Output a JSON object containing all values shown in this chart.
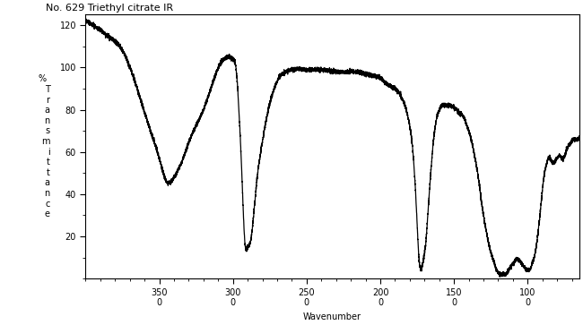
{
  "title": "No. 629 Triethyl citrate IR",
  "xlabel": "Wavenumber",
  "ylabel_chars": [
    "%",
    " ",
    "T",
    "r",
    "a",
    "n",
    "s",
    "m",
    "i",
    "t",
    "t",
    "a",
    "n",
    "c",
    "e"
  ],
  "xlim": [
    4000,
    650
  ],
  "ylim": [
    0,
    125
  ],
  "yticks": [
    20,
    40,
    60,
    80,
    100,
    120
  ],
  "xticks": [
    3500,
    3000,
    2500,
    2000,
    1500,
    1000
  ],
  "xtick_labels": [
    "350\n0",
    "300\n0",
    "250\n0",
    "200\n0",
    "150\n0",
    "100\n0"
  ],
  "background_color": "#ffffff",
  "line_color": "#000000",
  "title_fontsize": 8,
  "axis_fontsize": 7,
  "tick_fontsize": 7,
  "control_points": [
    [
      4000,
      122
    ],
    [
      3950,
      120
    ],
    [
      3850,
      115
    ],
    [
      3750,
      108
    ],
    [
      3650,
      90
    ],
    [
      3560,
      70
    ],
    [
      3500,
      57
    ],
    [
      3450,
      46
    ],
    [
      3400,
      48
    ],
    [
      3350,
      55
    ],
    [
      3280,
      68
    ],
    [
      3200,
      80
    ],
    [
      3150,
      90
    ],
    [
      3100,
      100
    ],
    [
      3060,
      104
    ],
    [
      3030,
      105
    ],
    [
      3000,
      104
    ],
    [
      2980,
      100
    ],
    [
      2960,
      80
    ],
    [
      2940,
      50
    ],
    [
      2920,
      18
    ],
    [
      2900,
      15
    ],
    [
      2880,
      18
    ],
    [
      2860,
      30
    ],
    [
      2840,
      45
    ],
    [
      2800,
      65
    ],
    [
      2760,
      80
    ],
    [
      2720,
      90
    ],
    [
      2680,
      96
    ],
    [
      2640,
      98
    ],
    [
      2600,
      99
    ],
    [
      2500,
      99
    ],
    [
      2400,
      99
    ],
    [
      2300,
      98
    ],
    [
      2200,
      98
    ],
    [
      2100,
      97
    ],
    [
      2050,
      96
    ],
    [
      2000,
      95
    ],
    [
      1950,
      92
    ],
    [
      1900,
      90
    ],
    [
      1850,
      85
    ],
    [
      1800,
      72
    ],
    [
      1760,
      40
    ],
    [
      1740,
      12
    ],
    [
      1730,
      5
    ],
    [
      1720,
      5
    ],
    [
      1710,
      8
    ],
    [
      1700,
      12
    ],
    [
      1690,
      18
    ],
    [
      1680,
      28
    ],
    [
      1660,
      48
    ],
    [
      1640,
      65
    ],
    [
      1620,
      75
    ],
    [
      1600,
      80
    ],
    [
      1580,
      82
    ],
    [
      1560,
      82
    ],
    [
      1540,
      82
    ],
    [
      1520,
      82
    ],
    [
      1500,
      81
    ],
    [
      1480,
      80
    ],
    [
      1460,
      78
    ],
    [
      1450,
      78
    ],
    [
      1440,
      77
    ],
    [
      1430,
      76
    ],
    [
      1420,
      74
    ],
    [
      1400,
      70
    ],
    [
      1380,
      65
    ],
    [
      1360,
      58
    ],
    [
      1340,
      50
    ],
    [
      1320,
      40
    ],
    [
      1300,
      30
    ],
    [
      1280,
      22
    ],
    [
      1260,
      15
    ],
    [
      1240,
      10
    ],
    [
      1220,
      6
    ],
    [
      1210,
      4
    ],
    [
      1200,
      3
    ],
    [
      1190,
      2
    ],
    [
      1180,
      2
    ],
    [
      1170,
      2
    ],
    [
      1160,
      2
    ],
    [
      1150,
      2
    ],
    [
      1140,
      3
    ],
    [
      1130,
      4
    ],
    [
      1120,
      5
    ],
    [
      1110,
      6
    ],
    [
      1100,
      7
    ],
    [
      1090,
      8
    ],
    [
      1080,
      9
    ],
    [
      1070,
      9
    ],
    [
      1060,
      9
    ],
    [
      1050,
      8
    ],
    [
      1040,
      7
    ],
    [
      1030,
      6
    ],
    [
      1020,
      5
    ],
    [
      1010,
      4
    ],
    [
      1000,
      4
    ],
    [
      990,
      4
    ],
    [
      980,
      5
    ],
    [
      970,
      7
    ],
    [
      960,
      9
    ],
    [
      950,
      12
    ],
    [
      940,
      16
    ],
    [
      930,
      22
    ],
    [
      920,
      28
    ],
    [
      910,
      35
    ],
    [
      900,
      42
    ],
    [
      890,
      48
    ],
    [
      880,
      52
    ],
    [
      870,
      55
    ],
    [
      860,
      57
    ],
    [
      850,
      57
    ],
    [
      840,
      56
    ],
    [
      830,
      55
    ],
    [
      820,
      55
    ],
    [
      810,
      56
    ],
    [
      800,
      57
    ],
    [
      790,
      58
    ],
    [
      780,
      58
    ],
    [
      770,
      57
    ],
    [
      760,
      57
    ],
    [
      750,
      58
    ],
    [
      740,
      60
    ],
    [
      730,
      62
    ],
    [
      720,
      63
    ],
    [
      710,
      64
    ],
    [
      700,
      65
    ],
    [
      690,
      66
    ],
    [
      680,
      66
    ],
    [
      670,
      66
    ],
    [
      660,
      66
    ],
    [
      650,
      67
    ]
  ],
  "noise_seed": 42,
  "noise_amplitude": 0.5
}
